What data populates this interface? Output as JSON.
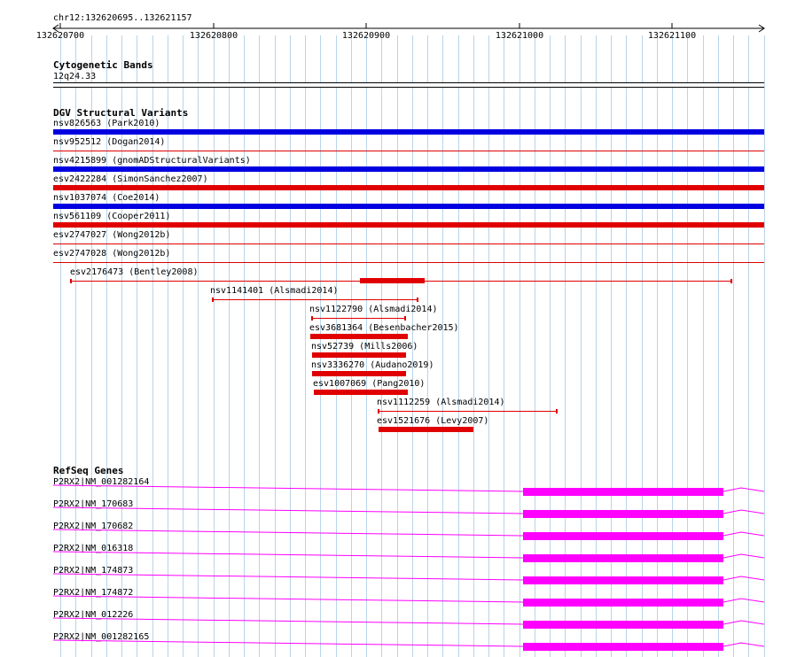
{
  "ruler": {
    "range_label": "chr12:132620695..132621157",
    "ticks": [
      "132620700",
      "132620800",
      "132620900",
      "132621000",
      "132621100"
    ]
  },
  "cytoband": {
    "title": "Cytogenetic Bands",
    "band": "12q24.33"
  },
  "dgv": {
    "title": "DGV Structural Variants",
    "full_rows": [
      {
        "label": "nsv826563 (Park2010)",
        "color": "#0000e0",
        "style": "thick"
      },
      {
        "label": "nsv952512 (Dogan2014)",
        "color": "#e00000",
        "style": "thin"
      },
      {
        "label": "nsv4215899 (gnomADStructuralVariants)",
        "color": "#0000e0",
        "style": "thick"
      },
      {
        "label": "esv2422284 (SimonSanchez2007)",
        "color": "#e00000",
        "style": "thick"
      },
      {
        "label": "nsv1037074 (Coe2014)",
        "color": "#0000e0",
        "style": "thick"
      },
      {
        "label": "nsv561109 (Cooper2011)",
        "color": "#e00000",
        "style": "thick"
      },
      {
        "label": "esv2747027 (Wong2012b)",
        "color": "#e00000",
        "style": "thin"
      },
      {
        "label": "esv2747028 (Wong2012b)",
        "color": "#e00000",
        "style": "thin"
      }
    ],
    "partial_rows": [
      {
        "label": "esv2176473 (Bentley2008)"
      },
      {
        "label": "nsv1141401 (Alsmadi2014)"
      },
      {
        "label": "nsv1122790 (Alsmadi2014)"
      },
      {
        "label": "esv3681364 (Besenbacher2015)"
      },
      {
        "label": "nsv52739 (Mills2006)"
      },
      {
        "label": "nsv3336270 (Audano2019)"
      },
      {
        "label": "esv1007069 (Pang2010)"
      },
      {
        "label": "nsv1112259 (Alsmadi2014)"
      },
      {
        "label": "esv1521676 (Levy2007)"
      }
    ]
  },
  "refseq": {
    "title": "RefSeq Genes",
    "color": "#ff00ff",
    "genes": [
      {
        "label": "P2RX2|NM_001282164"
      },
      {
        "label": "P2RX2|NM_170683"
      },
      {
        "label": "P2RX2|NM_170682"
      },
      {
        "label": "P2RX2|NM_016318"
      },
      {
        "label": "P2RX2|NM_174873"
      },
      {
        "label": "P2RX2|NM_174872"
      },
      {
        "label": "P2RX2|NM_012226"
      },
      {
        "label": "P2RX2|NM_001282165"
      }
    ]
  },
  "colors": {
    "grid": "#b8d4e8",
    "variant_red": "#e00000",
    "variant_blue": "#0000e0",
    "gene_magenta": "#ff00ff"
  }
}
